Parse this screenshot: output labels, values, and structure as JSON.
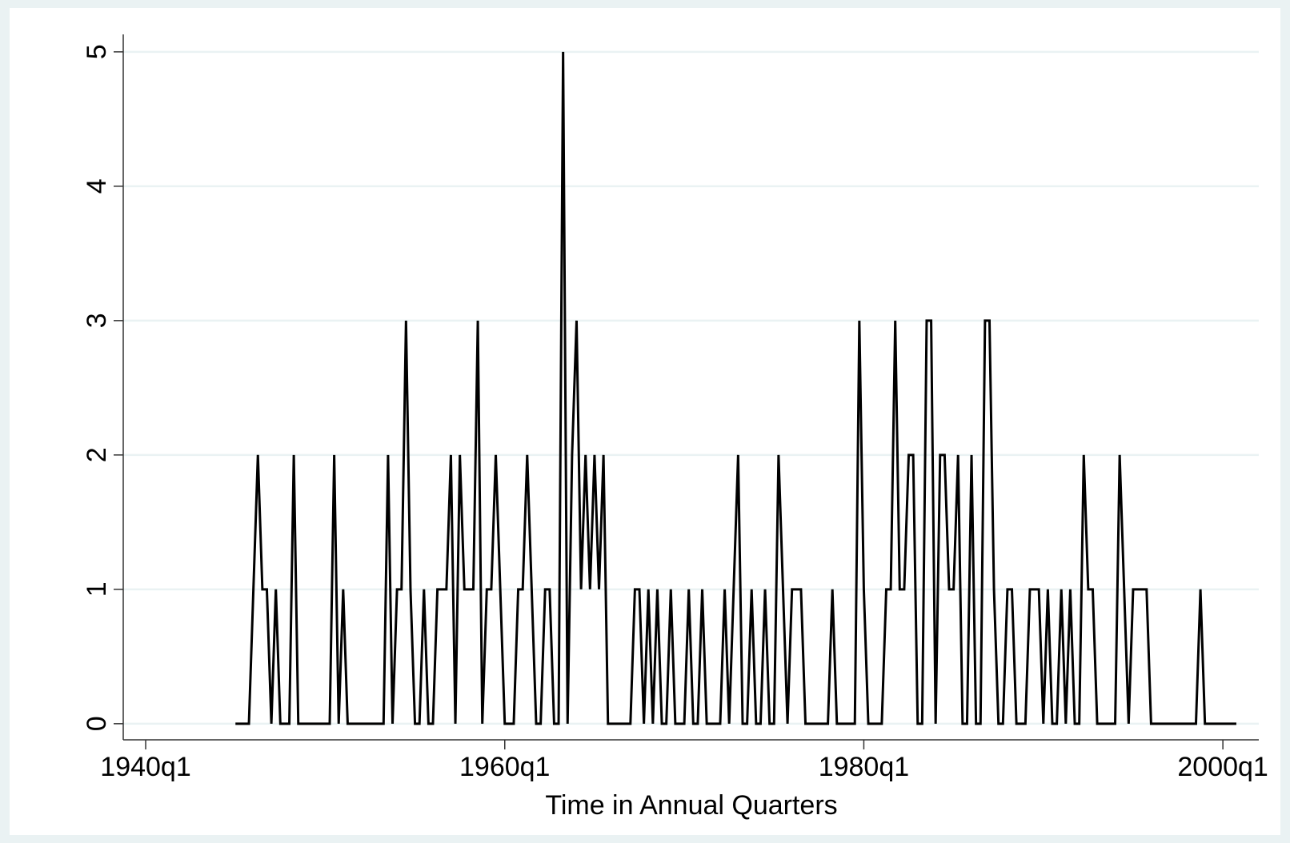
{
  "chart_data": {
    "type": "line",
    "x_label": "Time in Annual Quarters",
    "x": [
      "1945q1",
      "1945q2",
      "1945q3",
      "1945q4",
      "1946q1",
      "1946q2",
      "1946q3",
      "1946q4",
      "1947q1",
      "1947q2",
      "1947q3",
      "1947q4",
      "1948q1",
      "1948q2",
      "1948q3",
      "1948q4",
      "1949q1",
      "1949q2",
      "1949q3",
      "1949q4",
      "1950q1",
      "1950q2",
      "1950q3",
      "1950q4",
      "1951q1",
      "1951q2",
      "1951q3",
      "1951q4",
      "1952q1",
      "1952q2",
      "1952q3",
      "1952q4",
      "1953q1",
      "1953q2",
      "1953q3",
      "1953q4",
      "1954q1",
      "1954q2",
      "1954q3",
      "1954q4",
      "1955q1",
      "1955q2",
      "1955q3",
      "1955q4",
      "1956q1",
      "1956q2",
      "1956q3",
      "1956q4",
      "1957q1",
      "1957q2",
      "1957q3",
      "1957q4",
      "1958q1",
      "1958q2",
      "1958q3",
      "1958q4",
      "1959q1",
      "1959q2",
      "1959q3",
      "1959q4",
      "1960q1",
      "1960q2",
      "1960q3",
      "1960q4",
      "1961q1",
      "1961q2",
      "1961q3",
      "1961q4",
      "1962q1",
      "1962q2",
      "1962q3",
      "1962q4",
      "1963q1",
      "1963q2",
      "1963q3",
      "1963q4",
      "1964q1",
      "1964q2",
      "1964q3",
      "1964q4",
      "1965q1",
      "1965q2",
      "1965q3",
      "1965q4",
      "1966q1",
      "1966q2",
      "1966q3",
      "1966q4",
      "1967q1",
      "1967q2",
      "1967q3",
      "1967q4",
      "1968q1",
      "1968q2",
      "1968q3",
      "1968q4",
      "1969q1",
      "1969q2",
      "1969q3",
      "1969q4",
      "1970q1",
      "1970q2",
      "1970q3",
      "1970q4",
      "1971q1",
      "1971q2",
      "1971q3",
      "1971q4",
      "1972q1",
      "1972q2",
      "1972q3",
      "1972q4",
      "1973q1",
      "1973q2",
      "1973q3",
      "1973q4",
      "1974q1",
      "1974q2",
      "1974q3",
      "1974q4",
      "1975q1",
      "1975q2",
      "1975q3",
      "1975q4",
      "1976q1",
      "1976q2",
      "1976q3",
      "1976q4",
      "1977q1",
      "1977q2",
      "1977q3",
      "1977q4",
      "1978q1",
      "1978q2",
      "1978q3",
      "1978q4",
      "1979q1",
      "1979q2",
      "1979q3",
      "1979q4",
      "1980q1",
      "1980q2",
      "1980q3",
      "1980q4",
      "1981q1",
      "1981q2",
      "1981q3",
      "1981q4",
      "1982q1",
      "1982q2",
      "1982q3",
      "1982q4",
      "1983q1",
      "1983q2",
      "1983q3",
      "1983q4",
      "1984q1",
      "1984q2",
      "1984q3",
      "1984q4",
      "1985q1",
      "1985q2",
      "1985q3",
      "1985q4",
      "1986q1",
      "1986q2",
      "1986q3",
      "1986q4",
      "1987q1",
      "1987q2",
      "1987q3",
      "1987q4",
      "1988q1",
      "1988q2",
      "1988q3",
      "1988q4",
      "1989q1",
      "1989q2",
      "1989q3",
      "1989q4",
      "1990q1",
      "1990q2",
      "1990q3",
      "1990q4",
      "1991q1",
      "1991q2",
      "1991q3",
      "1991q4",
      "1992q1",
      "1992q2",
      "1992q3",
      "1992q4",
      "1993q1",
      "1993q2",
      "1993q3",
      "1993q4",
      "1994q1",
      "1994q2",
      "1994q3",
      "1994q4",
      "1995q1",
      "1995q2",
      "1995q3",
      "1995q4",
      "1996q1",
      "1996q2",
      "1996q3",
      "1996q4",
      "1997q1",
      "1997q2",
      "1997q3",
      "1997q4",
      "1998q1",
      "1998q2",
      "1998q3",
      "1998q4",
      "1999q1",
      "1999q2",
      "1999q3",
      "1999q4",
      "2000q1",
      "2000q2",
      "2000q3",
      "2000q4"
    ],
    "values": [
      0,
      0,
      0,
      0,
      1,
      2,
      1,
      1,
      0,
      1,
      0,
      0,
      0,
      2,
      0,
      0,
      0,
      0,
      0,
      0,
      0,
      0,
      2,
      0,
      1,
      0,
      0,
      0,
      0,
      0,
      0,
      0,
      0,
      0,
      2,
      0,
      1,
      1,
      3,
      1,
      0,
      0,
      1,
      0,
      0,
      1,
      1,
      1,
      2,
      0,
      2,
      1,
      1,
      1,
      3,
      0,
      1,
      1,
      2,
      1,
      0,
      0,
      0,
      1,
      1,
      2,
      1,
      0,
      0,
      1,
      1,
      0,
      0,
      5,
      0,
      2,
      3,
      1,
      2,
      1,
      2,
      1,
      2,
      0,
      0,
      0,
      0,
      0,
      0,
      1,
      1,
      0,
      1,
      0,
      1,
      0,
      0,
      1,
      0,
      0,
      0,
      1,
      0,
      0,
      1,
      0,
      0,
      0,
      0,
      1,
      0,
      1,
      2,
      0,
      0,
      1,
      0,
      0,
      1,
      0,
      0,
      2,
      1,
      0,
      1,
      1,
      1,
      0,
      0,
      0,
      0,
      0,
      0,
      1,
      0,
      0,
      0,
      0,
      0,
      3,
      1,
      0,
      0,
      0,
      0,
      1,
      1,
      3,
      1,
      1,
      2,
      2,
      0,
      0,
      3,
      3,
      0,
      2,
      2,
      1,
      1,
      2,
      0,
      0,
      2,
      0,
      0,
      3,
      3,
      1,
      0,
      0,
      1,
      1,
      0,
      0,
      0,
      1,
      1,
      1,
      0,
      1,
      0,
      0,
      1,
      0,
      1,
      0,
      0,
      2,
      1,
      1,
      0,
      0,
      0,
      0,
      0,
      2,
      1,
      0,
      1,
      1,
      1,
      1,
      0,
      0,
      0,
      0,
      0,
      0,
      0,
      0,
      0,
      0,
      0,
      1,
      0,
      0,
      0,
      0,
      0,
      0,
      0,
      0
    ],
    "color": "#000000",
    "xlim": [
      "1938q4",
      "2002q1"
    ],
    "xticks": [
      "1940q1",
      "1960q1",
      "1980q1",
      "2000q1"
    ],
    "ylim": [
      -0.12,
      5.13
    ],
    "yticks": [
      0,
      1,
      2,
      3,
      4,
      5
    ],
    "grid": true
  }
}
